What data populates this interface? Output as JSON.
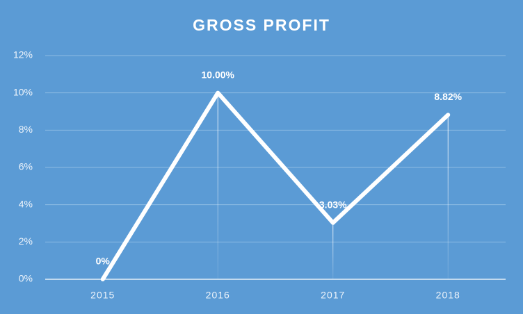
{
  "chart_data": {
    "type": "line",
    "title": "GROSS PROFIT",
    "categories": [
      "2015",
      "2016",
      "2017",
      "2018"
    ],
    "values": [
      0,
      10,
      3.03,
      8.82
    ],
    "value_labels": [
      "0%",
      "10.00%",
      "3.03%",
      "8.82%"
    ],
    "color": "#ffffff",
    "ylim": [
      0,
      12
    ],
    "yticks": [
      {
        "value": 0,
        "label": "0%"
      },
      {
        "value": 2,
        "label": "2%"
      },
      {
        "value": 4,
        "label": "4%"
      },
      {
        "value": 6,
        "label": "6%"
      },
      {
        "value": 8,
        "label": "8%"
      },
      {
        "value": 10,
        "label": "10%"
      },
      {
        "value": 12,
        "label": "12%"
      }
    ],
    "grid": true
  }
}
